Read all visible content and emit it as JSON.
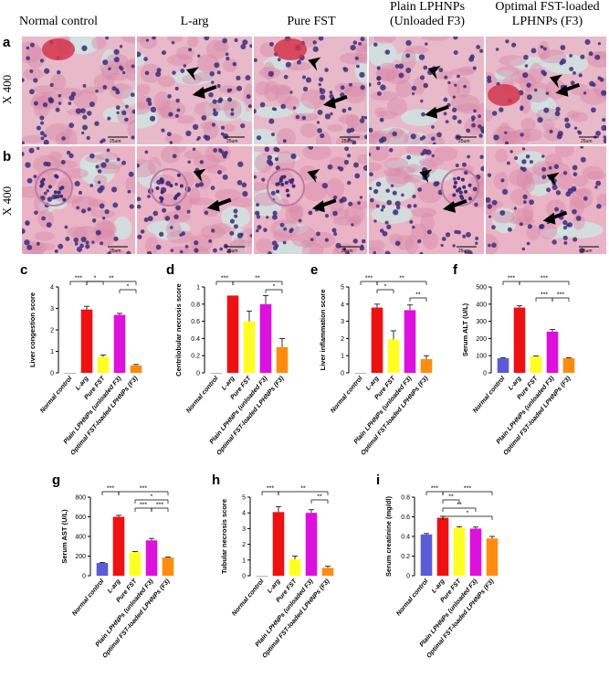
{
  "columns": [
    "Normal control",
    "L-arg",
    "Pure FST",
    "Plain LPHNPs\n(Unloaded F3)",
    "Optimal FST-loaded\nLPHNPs (F3)"
  ],
  "rows": [
    {
      "letter": "a",
      "magnification": "X 400"
    },
    {
      "letter": "b",
      "magnification": "X 400"
    }
  ],
  "scale_bar_label": "25um",
  "colors": {
    "normal": "#5b5bd6",
    "larg": "#ee1111",
    "pure": "#ffff22",
    "plain": "#dd11dd",
    "optimal": "#ff8c11"
  },
  "chart_data": [
    {
      "panel": "c",
      "type": "bar",
      "ylabel": "Liver congestion score",
      "ylim": [
        0,
        4
      ],
      "yticks": [
        0,
        1,
        2,
        3,
        4
      ],
      "categories": [
        "Normal control",
        "L-arg",
        "Pure FST",
        "Plain LPHNPs (unloaded F3)",
        "Optimal FST-loaded LPHNPs (F3)"
      ],
      "values": [
        0,
        2.95,
        0.75,
        2.7,
        0.35
      ],
      "errors": [
        0,
        0.15,
        0.08,
        0.07,
        0.04
      ],
      "brackets": [
        {
          "from": 0,
          "to": 1,
          "label": "***",
          "level": 0
        },
        {
          "from": 1,
          "to": 2,
          "label": "*",
          "level": 0
        },
        {
          "from": 1,
          "to": 4,
          "label": "**",
          "level": 0
        },
        {
          "from": 3,
          "to": 4,
          "label": "*",
          "level": 1
        }
      ]
    },
    {
      "panel": "d",
      "type": "bar",
      "ylabel": "Centrilobular necrosis score",
      "ylim": [
        0,
        1.0
      ],
      "yticks": [
        0.0,
        0.2,
        0.4,
        0.6,
        0.8,
        1.0
      ],
      "categories": [
        "Normal control",
        "L-arg",
        "Pure FST",
        "Plain LPHNPs (unloaded F3)",
        "Optimal FST-loaded LPHNPs (F3)"
      ],
      "values": [
        0,
        0.9,
        0.6,
        0.8,
        0.3
      ],
      "errors": [
        0,
        0,
        0.12,
        0.1,
        0.1
      ],
      "brackets": [
        {
          "from": 0,
          "to": 1,
          "label": "***",
          "level": 0
        },
        {
          "from": 1,
          "to": 4,
          "label": "**",
          "level": 0
        },
        {
          "from": 3,
          "to": 4,
          "label": "*",
          "level": 1
        }
      ]
    },
    {
      "panel": "e",
      "type": "bar",
      "ylabel": "Liver inflammation score",
      "ylim": [
        0,
        5
      ],
      "yticks": [
        0,
        1,
        2,
        3,
        4,
        5
      ],
      "categories": [
        "Normal control",
        "L-arg",
        "Pure FST",
        "Plain LPHNPs (unloaded F3)",
        "Optimal FST-loaded LPHNPs (F3)"
      ],
      "values": [
        0,
        3.8,
        1.95,
        3.65,
        0.8
      ],
      "errors": [
        0,
        0.2,
        0.5,
        0.3,
        0.2
      ],
      "brackets": [
        {
          "from": 0,
          "to": 1,
          "label": "***",
          "level": 0
        },
        {
          "from": 1,
          "to": 2,
          "label": "*",
          "level": 1
        },
        {
          "from": 1,
          "to": 4,
          "label": "**",
          "level": 0
        },
        {
          "from": 3,
          "to": 4,
          "label": "**",
          "level": 2
        }
      ]
    },
    {
      "panel": "f",
      "type": "bar",
      "ylabel": "Serum ALT (U/L)",
      "ylim": [
        0,
        500
      ],
      "yticks": [
        0,
        100,
        200,
        300,
        400,
        500
      ],
      "categories": [
        "Normal control",
        "L-arg",
        "Pure FST",
        "Plain LPHNPs (unloaded F3)",
        "Optimal FST-loaded LPHNPs (F3)"
      ],
      "values": [
        85,
        380,
        95,
        240,
        85
      ],
      "errors": [
        3,
        10,
        4,
        12,
        3
      ],
      "brackets": [
        {
          "from": 0,
          "to": 1,
          "label": "***",
          "level": 0
        },
        {
          "from": 1,
          "to": 4,
          "label": "***",
          "level": 0
        },
        {
          "from": 2,
          "to": 3,
          "label": "***",
          "level": 2
        },
        {
          "from": 3,
          "to": 4,
          "label": "***",
          "level": 2
        }
      ]
    },
    {
      "panel": "g",
      "type": "bar",
      "ylabel": "Serum AST (U/L)",
      "ylim": [
        0,
        800
      ],
      "yticks": [
        0,
        200,
        400,
        600,
        800
      ],
      "categories": [
        "Normal control",
        "L-arg",
        "Pure FST",
        "Plain LPHNPs (unloaded F3)",
        "Optimal FST-loaded LPHNPs (F3)"
      ],
      "values": [
        130,
        600,
        240,
        360,
        185
      ],
      "errors": [
        5,
        15,
        6,
        20,
        6
      ],
      "brackets": [
        {
          "from": 0,
          "to": 1,
          "label": "***",
          "level": 0
        },
        {
          "from": 1,
          "to": 4,
          "label": "***",
          "level": 0
        },
        {
          "from": 2,
          "to": 4,
          "label": "*",
          "level": 1
        },
        {
          "from": 2,
          "to": 3,
          "label": "***",
          "level": 2
        },
        {
          "from": 3,
          "to": 4,
          "label": "***",
          "level": 2
        }
      ]
    },
    {
      "panel": "h",
      "type": "bar",
      "ylabel": "Tubular necrosis score",
      "ylim": [
        0,
        5
      ],
      "yticks": [
        0,
        1,
        2,
        3,
        4,
        5
      ],
      "categories": [
        "Normal control",
        "L-arg",
        "Pure FST",
        "Plain LPHNPs (unloaded F3)",
        "Optimal FST-loaded LPHNPs (F3)"
      ],
      "values": [
        0,
        4.05,
        1.05,
        4.0,
        0.5
      ],
      "errors": [
        0,
        0.35,
        0.2,
        0.2,
        0.1
      ],
      "brackets": [
        {
          "from": 0,
          "to": 1,
          "label": "***",
          "level": 0
        },
        {
          "from": 1,
          "to": 4,
          "label": "**",
          "level": 0
        },
        {
          "from": 3,
          "to": 4,
          "label": "**",
          "level": 1
        }
      ]
    },
    {
      "panel": "i",
      "type": "bar",
      "ylabel": "Serum creatinine (mg/dl)",
      "ylim": [
        0,
        0.8
      ],
      "yticks": [
        0.0,
        0.2,
        0.4,
        0.6,
        0.8
      ],
      "categories": [
        "Normal control",
        "L-arg",
        "Pure FST",
        "Plain LPHNPs (unloaded F3)",
        "Optimal FST-loaded LPHNPs (F3)"
      ],
      "values": [
        0.42,
        0.59,
        0.49,
        0.48,
        0.38
      ],
      "errors": [
        0.01,
        0.015,
        0.01,
        0.015,
        0.02
      ],
      "brackets": [
        {
          "from": 0,
          "to": 1,
          "label": "***",
          "level": 0
        },
        {
          "from": 1,
          "to": 4,
          "label": "***",
          "level": 0
        },
        {
          "from": 1,
          "to": 2,
          "label": "**",
          "level": 1
        },
        {
          "from": 1,
          "to": 3,
          "label": "**",
          "level": 2
        },
        {
          "from": 1,
          "to": 4,
          "label": "*",
          "level": 3
        }
      ]
    }
  ]
}
